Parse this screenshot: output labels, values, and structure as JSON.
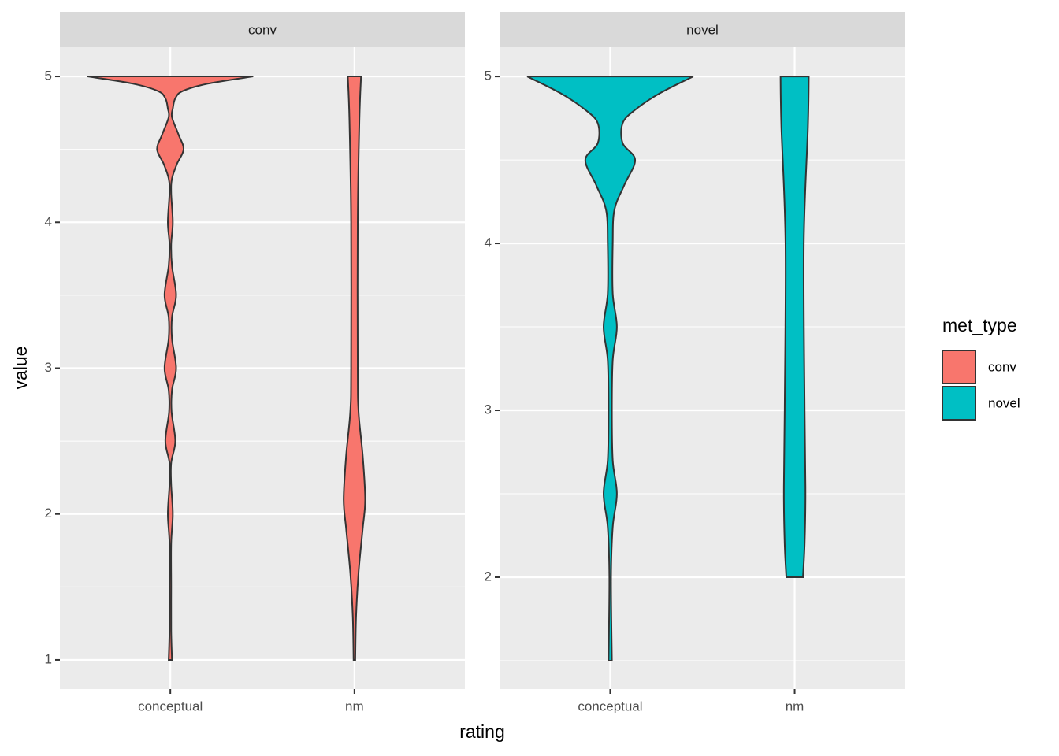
{
  "chart_data": {
    "type": "violin",
    "x_label": "rating",
    "y_label": "value",
    "legend_title": "met_type",
    "categories": [
      "conceptual",
      "nm"
    ],
    "series": [
      {
        "name": "conv",
        "color": "#F8766D",
        "ylim": [
          0.8,
          5.2
        ],
        "yticks": [
          1,
          2,
          3,
          4,
          5
        ],
        "minor_yticks": [
          1.5,
          2.5,
          3.5,
          4.5
        ],
        "violins": [
          {
            "y": [
              1.0,
              1.2,
              1.5,
              1.8,
              2.0,
              2.2,
              2.35,
              2.5,
              2.7,
              2.85,
              3.0,
              3.2,
              3.35,
              3.5,
              3.7,
              3.85,
              4.0,
              4.2,
              4.3,
              4.4,
              4.5,
              4.6,
              4.72,
              4.78,
              4.85,
              4.9,
              4.95,
              5.0
            ],
            "width": [
              0.02,
              0.01,
              0.01,
              0.01,
              0.03,
              0.01,
              0.01,
              0.06,
              0.015,
              0.02,
              0.07,
              0.02,
              0.02,
              0.07,
              0.02,
              0.01,
              0.03,
              0.01,
              0.02,
              0.08,
              0.16,
              0.1,
              0.02,
              0.03,
              0.06,
              0.15,
              0.45,
              1.0
            ]
          },
          {
            "y": [
              1.0,
              1.3,
              1.6,
              1.9,
              2.1,
              2.4,
              2.7,
              3.0,
              4.0,
              4.7,
              5.0
            ],
            "width": [
              0.01,
              0.02,
              0.05,
              0.1,
              0.13,
              0.1,
              0.05,
              0.04,
              0.04,
              0.06,
              0.08
            ]
          }
        ]
      },
      {
        "name": "novel",
        "color": "#00BFC4",
        "ylim": [
          1.33,
          5.175
        ],
        "yticks": [
          2,
          3,
          4,
          5
        ],
        "minor_yticks": [
          1.5,
          2.5,
          3.5,
          4.5
        ],
        "violins": [
          {
            "y": [
              1.5,
              2.0,
              2.3,
              2.5,
              2.7,
              3.0,
              3.3,
              3.5,
              3.7,
              4.0,
              4.2,
              4.35,
              4.5,
              4.6,
              4.72,
              4.8,
              4.9,
              5.0
            ],
            "width": [
              0.02,
              0.01,
              0.03,
              0.08,
              0.03,
              0.02,
              0.03,
              0.08,
              0.03,
              0.03,
              0.05,
              0.17,
              0.3,
              0.15,
              0.15,
              0.3,
              0.6,
              1.0
            ]
          },
          {
            "y": [
              2.0,
              2.2,
              2.5,
              3.0,
              4.0,
              4.7,
              5.0
            ],
            "width": [
              0.1,
              0.12,
              0.13,
              0.12,
              0.11,
              0.16,
              0.17
            ]
          }
        ]
      }
    ]
  }
}
